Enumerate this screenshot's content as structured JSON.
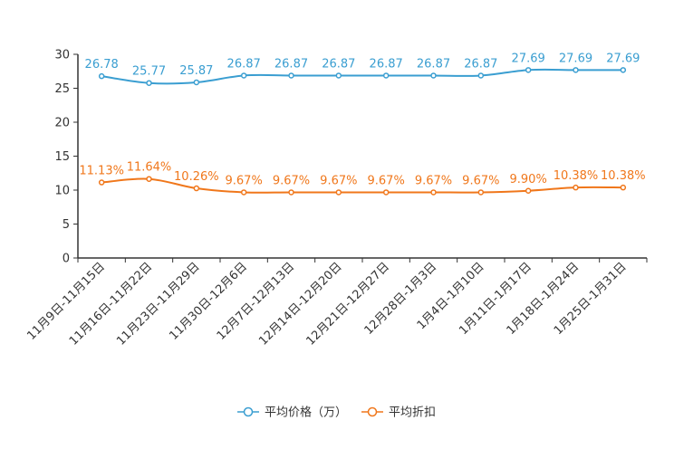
{
  "chart_data": {
    "type": "line",
    "categories": [
      "11月9日-11月15日",
      "11月16日-11月22日",
      "11月23日-11月29日",
      "11月30日-12月6日",
      "12月7日-12月13日",
      "12月14日-12月20日",
      "12月21日-12月27日",
      "12月28日-1月3日",
      "1月4日-1月10日",
      "1月11日-1月17日",
      "1月18日-1月24日",
      "1月25日-1月31日"
    ],
    "ylim": [
      0,
      30
    ],
    "yticks": [
      0,
      5,
      10,
      15,
      20,
      25,
      30
    ],
    "series": [
      {
        "name": "平均价格（万）",
        "color": "#3a9ed1",
        "values": [
          26.78,
          25.77,
          25.87,
          26.87,
          26.87,
          26.87,
          26.87,
          26.87,
          26.87,
          27.69,
          27.69,
          27.69
        ],
        "labels": [
          "26.78",
          "25.77",
          "25.87",
          "26.87",
          "26.87",
          "26.87",
          "26.87",
          "26.87",
          "26.87",
          "27.69",
          "27.69",
          "27.69"
        ]
      },
      {
        "name": "平均折扣",
        "color": "#f0771b",
        "values": [
          11.13,
          11.64,
          10.26,
          9.67,
          9.67,
          9.67,
          9.67,
          9.67,
          9.67,
          9.9,
          10.38,
          10.38
        ],
        "labels": [
          "11.13%",
          "11.64%",
          "10.26%",
          "9.67%",
          "9.67%",
          "9.67%",
          "9.67%",
          "9.67%",
          "9.67%",
          "9.90%",
          "10.38%",
          "10.38%"
        ]
      }
    ],
    "legend_position": "bottom-center"
  }
}
